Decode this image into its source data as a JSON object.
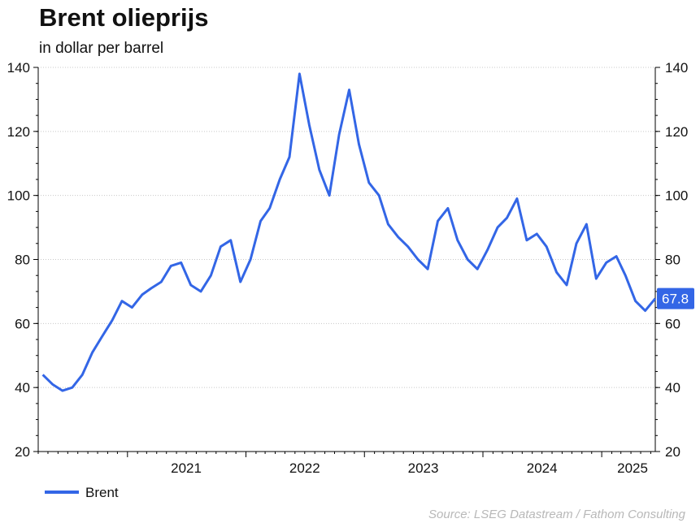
{
  "header": {
    "title": "Brent olieprijs",
    "subtitle": "in dollar per barrel"
  },
  "source": "Source: LSEG Datastream / Fathom Consulting",
  "chart_data": {
    "type": "line",
    "title": "Brent olieprijs",
    "subtitle": "in dollar per barrel",
    "xlabel": "",
    "ylabel": "",
    "ylim": [
      20,
      140
    ],
    "xlim": [
      "2020-04-01",
      "2025-06-15"
    ],
    "y_ticks": [
      20,
      40,
      60,
      80,
      100,
      120,
      140
    ],
    "x_ticks": [
      "2021",
      "2022",
      "2023",
      "2024",
      "2025"
    ],
    "grid": "horizontal dotted",
    "legend": "bottom-left",
    "last_value_label": "67.8",
    "colors": {
      "series": "#3366e6",
      "grid": "#c8c8c8",
      "label_bg": "#3366e6"
    },
    "series": [
      {
        "name": "Brent",
        "x": [
          "2020-04",
          "2020-05",
          "2020-06",
          "2020-07",
          "2020-08",
          "2020-09",
          "2020-10",
          "2020-11",
          "2020-12",
          "2021-01",
          "2021-02",
          "2021-03",
          "2021-04",
          "2021-05",
          "2021-06",
          "2021-07",
          "2021-08",
          "2021-09",
          "2021-10",
          "2021-11",
          "2021-12",
          "2022-01",
          "2022-02",
          "2022-03",
          "2022-04",
          "2022-05",
          "2022-06",
          "2022-07",
          "2022-08",
          "2022-09",
          "2022-10",
          "2022-11",
          "2022-12",
          "2023-01",
          "2023-02",
          "2023-03",
          "2023-04",
          "2023-05",
          "2023-06",
          "2023-07",
          "2023-08",
          "2023-09",
          "2023-10",
          "2023-11",
          "2023-12",
          "2024-01",
          "2024-02",
          "2024-03",
          "2024-04",
          "2024-05",
          "2024-06",
          "2024-07",
          "2024-08",
          "2024-09",
          "2024-10",
          "2024-11",
          "2024-12",
          "2025-01",
          "2025-02",
          "2025-03",
          "2025-04",
          "2025-05",
          "2025-06"
        ],
        "values": [
          44,
          41,
          39,
          40,
          44,
          51,
          56,
          61,
          67,
          65,
          69,
          71,
          73,
          78,
          79,
          72,
          70,
          75,
          84,
          86,
          73,
          80,
          92,
          96,
          105,
          112,
          138,
          122,
          108,
          100,
          119,
          133,
          116,
          104,
          100,
          91,
          87,
          84,
          80,
          77,
          92,
          96,
          86,
          80,
          77,
          83,
          90,
          93,
          99,
          86,
          88,
          84,
          76,
          72,
          85,
          91,
          74,
          79,
          81,
          75,
          67,
          64,
          67.8
        ]
      }
    ]
  }
}
